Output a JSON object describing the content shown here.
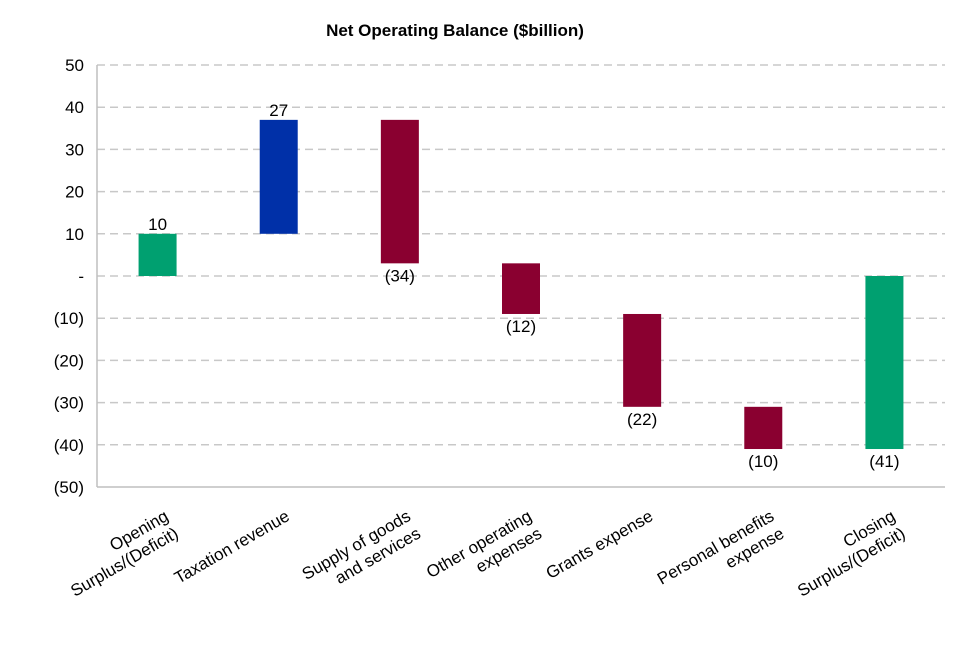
{
  "chart_data": {
    "type": "waterfall",
    "title": "Net Operating Balance ($billion)",
    "xlabel": "",
    "ylabel": "",
    "ylim": [
      -50,
      50
    ],
    "yticks": [
      50,
      40,
      30,
      20,
      10,
      0,
      -10,
      -20,
      -30,
      -40,
      -50
    ],
    "ytick_labels": [
      "50",
      "40",
      "30",
      "20",
      "10",
      "-",
      "(10)",
      "(20)",
      "(30)",
      "(40)",
      "(50)"
    ],
    "grid": true,
    "categories": [
      [
        "Opening",
        "Surplus/(Deficit)"
      ],
      [
        "Taxation revenue"
      ],
      [
        "Supply of goods",
        "and services"
      ],
      [
        "Other operating",
        "expenses"
      ],
      [
        "Grants expense"
      ],
      [
        "Personal benefits",
        "expense"
      ],
      [
        "Closing",
        "Surplus/(Deficit)"
      ]
    ],
    "values": [
      10,
      27,
      -34,
      -12,
      -22,
      -10,
      -41
    ],
    "data_labels": [
      "10",
      "27",
      "(34)",
      "(12)",
      "(22)",
      "(10)",
      "(41)"
    ],
    "bar_kind": [
      "total",
      "delta",
      "delta",
      "delta",
      "delta",
      "delta",
      "total"
    ],
    "colors": {
      "total": "#00A070",
      "increase": "#0030A8",
      "decrease": "#8A0030"
    }
  }
}
